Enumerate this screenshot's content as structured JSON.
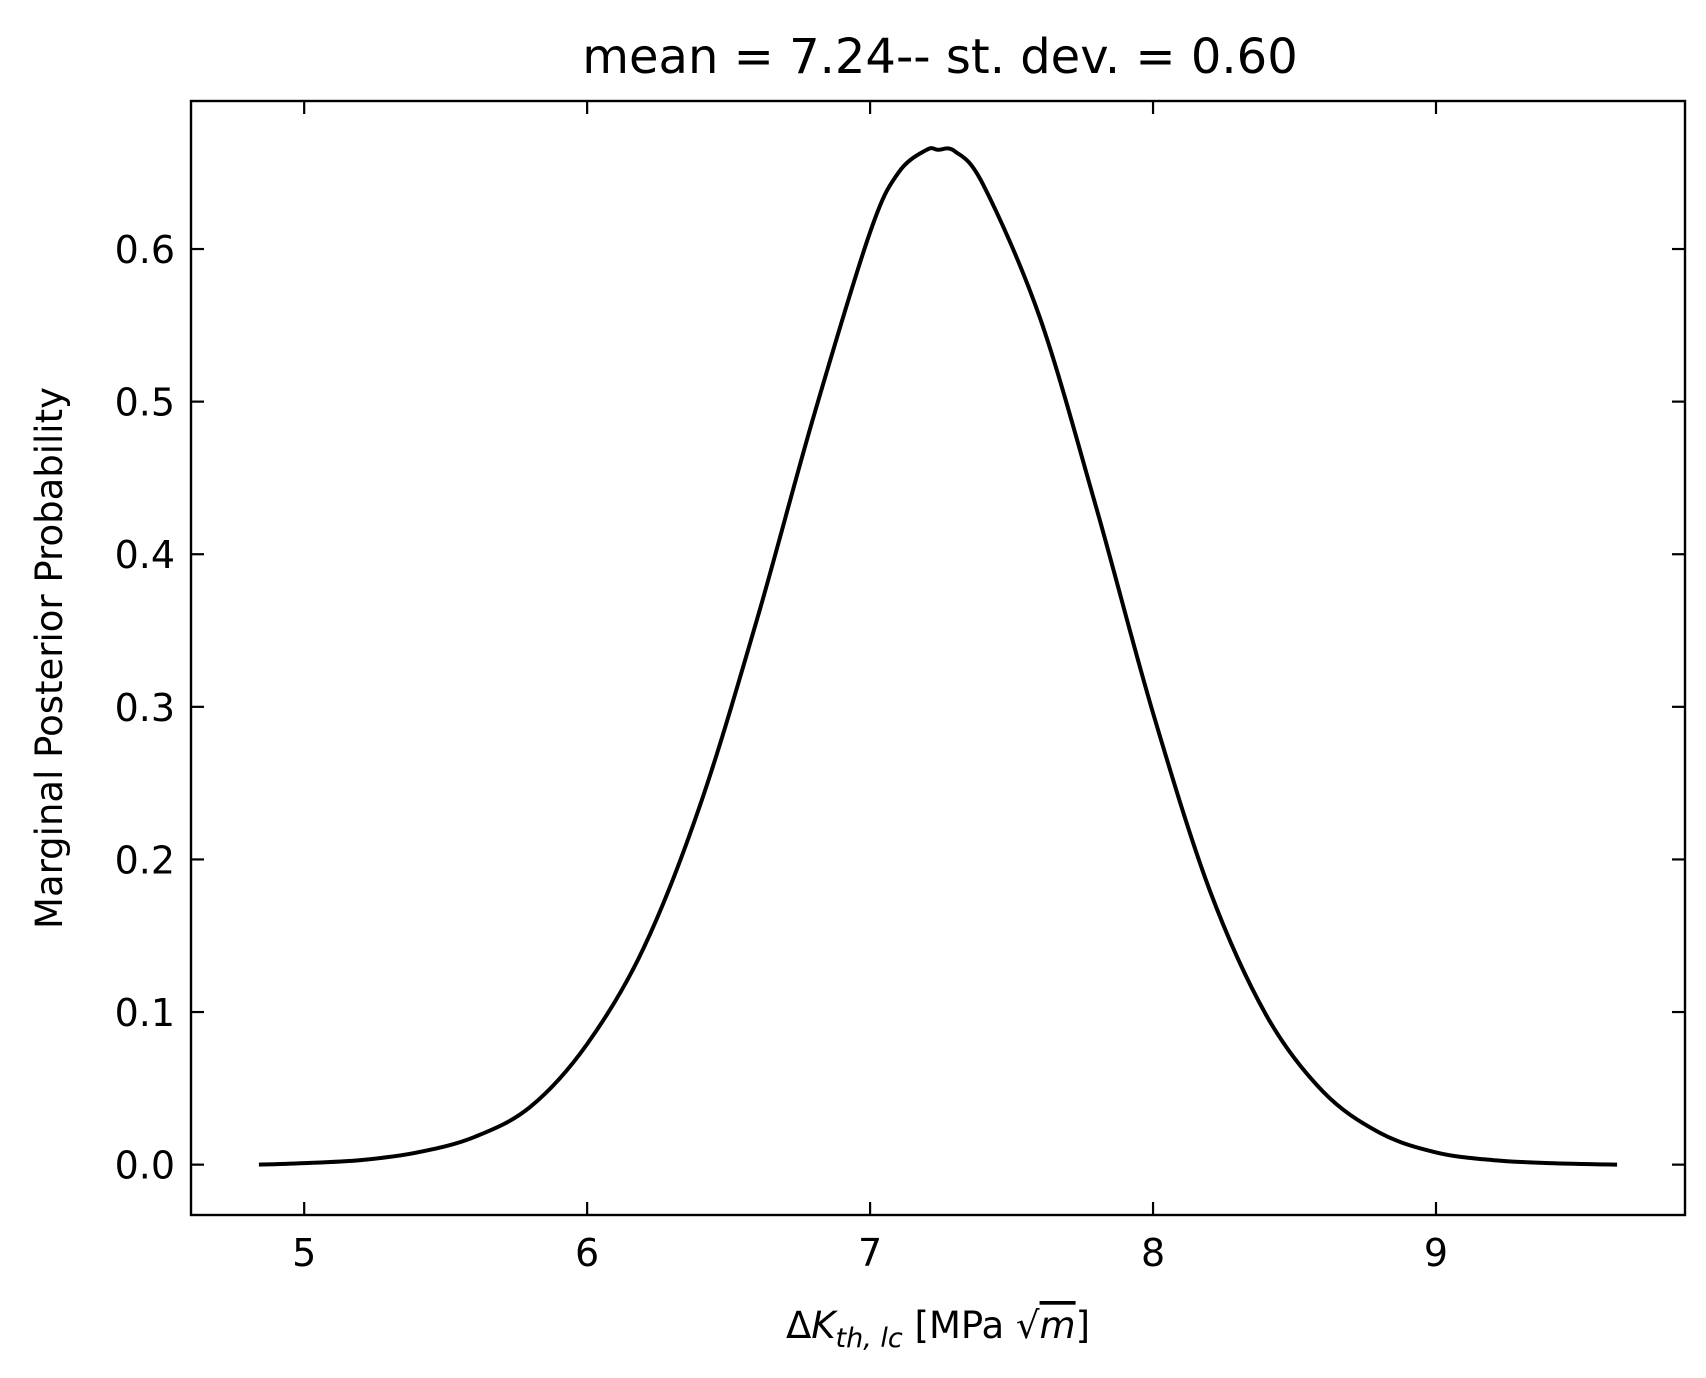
{
  "chart_data": {
    "type": "line",
    "title": "mean = 7.24-- st. dev. = 0.60",
    "xlabel": {
      "delta": "Δ",
      "var": "K",
      "subscript": "th, lc",
      "open": " [MPa ",
      "sqrt": "√",
      "radicand": "m",
      "close": "]"
    },
    "ylabel": "Marginal Posterior Probability",
    "xlim": [
      4.6,
      9.88
    ],
    "ylim": [
      -0.033,
      0.697
    ],
    "xticks": [
      5,
      6,
      7,
      8,
      9
    ],
    "xtick_labels": [
      "5",
      "6",
      "7",
      "8",
      "9"
    ],
    "yticks": [
      0.0,
      0.1,
      0.2,
      0.3,
      0.4,
      0.5,
      0.6
    ],
    "ytick_labels": [
      "0.0",
      "0.1",
      "0.2",
      "0.3",
      "0.4",
      "0.5",
      "0.6"
    ],
    "grid": false,
    "series": [
      {
        "color": "#000000",
        "x": [
          4.84,
          5.0,
          5.2,
          5.4,
          5.6,
          5.8,
          6.0,
          6.2,
          6.4,
          6.6,
          6.8,
          7.0,
          7.1,
          7.2,
          7.24,
          7.3,
          7.4,
          7.6,
          7.8,
          8.0,
          8.2,
          8.4,
          8.6,
          8.8,
          9.0,
          9.2,
          9.4,
          9.64
        ],
        "y": [
          0.0,
          0.001,
          0.003,
          0.008,
          0.018,
          0.038,
          0.079,
          0.142,
          0.236,
          0.357,
          0.49,
          0.611,
          0.65,
          0.665,
          0.665,
          0.664,
          0.642,
          0.555,
          0.43,
          0.296,
          0.18,
          0.098,
          0.048,
          0.021,
          0.008,
          0.003,
          0.001,
          0.0
        ]
      }
    ]
  }
}
